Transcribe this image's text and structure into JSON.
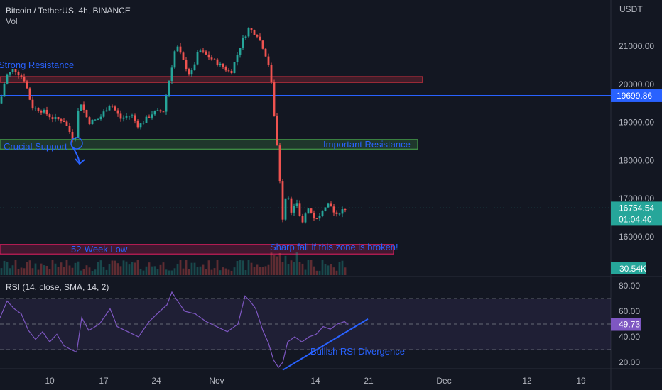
{
  "header": {
    "symbol": "Bitcoin / TetherUS, 4h, BINANCE",
    "vol_label": "Vol"
  },
  "chart_data": [
    {
      "type": "candlestick",
      "title": "Bitcoin / TetherUS, 4h, BINANCE",
      "ylabel": "USDT",
      "ylim": [
        15400,
        22300
      ],
      "yticks": [
        16000,
        17000,
        18000,
        19000,
        20000,
        21000
      ],
      "ytick_labels": [
        "16000.00",
        "17000.00",
        "18000.00",
        "19000.00",
        "20000.00",
        "21000.00"
      ],
      "xtick_labels": [
        "10",
        "17",
        "24",
        "Nov",
        "14",
        "21",
        "Dec",
        "12",
        "19"
      ],
      "price_path": [
        [
          0,
          19500
        ],
        [
          8,
          20200
        ],
        [
          20,
          20400
        ],
        [
          35,
          20100
        ],
        [
          45,
          19400
        ],
        [
          60,
          19300
        ],
        [
          75,
          19100
        ],
        [
          90,
          19050
        ],
        [
          105,
          18500
        ],
        [
          112,
          19600
        ],
        [
          125,
          19000
        ],
        [
          140,
          19100
        ],
        [
          155,
          19500
        ],
        [
          170,
          19100
        ],
        [
          185,
          19200
        ],
        [
          195,
          18900
        ],
        [
          215,
          19250
        ],
        [
          230,
          19300
        ],
        [
          238,
          20100
        ],
        [
          248,
          21050
        ],
        [
          258,
          20600
        ],
        [
          268,
          20200
        ],
        [
          280,
          20900
        ],
        [
          295,
          20700
        ],
        [
          310,
          20500
        ],
        [
          325,
          20300
        ],
        [
          340,
          21100
        ],
        [
          350,
          21450
        ],
        [
          362,
          21300
        ],
        [
          372,
          20900
        ],
        [
          380,
          20400
        ],
        [
          385,
          19400
        ],
        [
          392,
          18000
        ],
        [
          398,
          16500
        ],
        [
          404,
          17300
        ],
        [
          410,
          16600
        ],
        [
          418,
          16900
        ],
        [
          425,
          16300
        ],
        [
          432,
          16800
        ],
        [
          440,
          16550
        ],
        [
          448,
          16400
        ],
        [
          455,
          16800
        ],
        [
          465,
          16900
        ],
        [
          472,
          16500
        ],
        [
          480,
          16700
        ],
        [
          488,
          16754.54
        ]
      ],
      "last_price": "16754.54",
      "countdown": "01:04:40",
      "line_level": "19699.86",
      "volume": "30.54K",
      "zones": [
        {
          "label": "Strong Resistance",
          "from": 20050,
          "to": 20200,
          "color": "#f23645"
        },
        {
          "label": "Important Resistance",
          "from": 18300,
          "to": 18550,
          "color": "#4caf50"
        },
        {
          "label": "52-Week Low",
          "from": 15550,
          "to": 15800,
          "color": "#e91e63"
        }
      ],
      "annotations": [
        "Strong Resistance",
        "Crucial Support",
        "Important Resistance",
        "52-Week Low",
        "Sharp fall if this zone is broken!"
      ]
    },
    {
      "type": "line",
      "title": "RSI (14, close, SMA, 14, 2)",
      "ylim": [
        10,
        85
      ],
      "yticks": [
        20,
        40,
        60,
        80
      ],
      "ytick_labels": [
        "20.00",
        "40.00",
        "60.00",
        "80.00"
      ],
      "bands": [
        30,
        50,
        70
      ],
      "current_value": "49.73",
      "series": [
        {
          "values": [
            [
              0,
              55
            ],
            [
              10,
              68
            ],
            [
              20,
              62
            ],
            [
              30,
              58
            ],
            [
              40,
              45
            ],
            [
              50,
              38
            ],
            [
              60,
              44
            ],
            [
              70,
              36
            ],
            [
              80,
              42
            ],
            [
              90,
              33
            ],
            [
              100,
              30
            ],
            [
              108,
              28
            ],
            [
              115,
              55
            ],
            [
              125,
              45
            ],
            [
              140,
              50
            ],
            [
              155,
              62
            ],
            [
              165,
              48
            ],
            [
              180,
              44
            ],
            [
              195,
              40
            ],
            [
              210,
              52
            ],
            [
              225,
              60
            ],
            [
              235,
              65
            ],
            [
              242,
              75
            ],
            [
              250,
              68
            ],
            [
              260,
              60
            ],
            [
              275,
              58
            ],
            [
              290,
              52
            ],
            [
              305,
              48
            ],
            [
              320,
              44
            ],
            [
              335,
              50
            ],
            [
              345,
              72
            ],
            [
              352,
              68
            ],
            [
              360,
              62
            ],
            [
              370,
              45
            ],
            [
              378,
              35
            ],
            [
              385,
              22
            ],
            [
              392,
              16
            ],
            [
              398,
              20
            ],
            [
              405,
              36
            ],
            [
              415,
              40
            ],
            [
              425,
              36
            ],
            [
              435,
              40
            ],
            [
              445,
              42
            ],
            [
              455,
              48
            ],
            [
              465,
              46
            ],
            [
              475,
              50
            ],
            [
              485,
              52
            ],
            [
              490,
              49.73
            ]
          ]
        }
      ],
      "trendline": [
        [
          398,
          14
        ],
        [
          518,
          54
        ]
      ],
      "annotations": [
        "Bullish RSI Divergence"
      ]
    }
  ],
  "colors": {
    "background": "#131722",
    "up": "#26a69a",
    "down": "#ef5350",
    "accent": "#2962ff",
    "rsi_line": "#7e57c2",
    "last_price_badge": "#26a69a",
    "line_badge": "#2962ff"
  }
}
